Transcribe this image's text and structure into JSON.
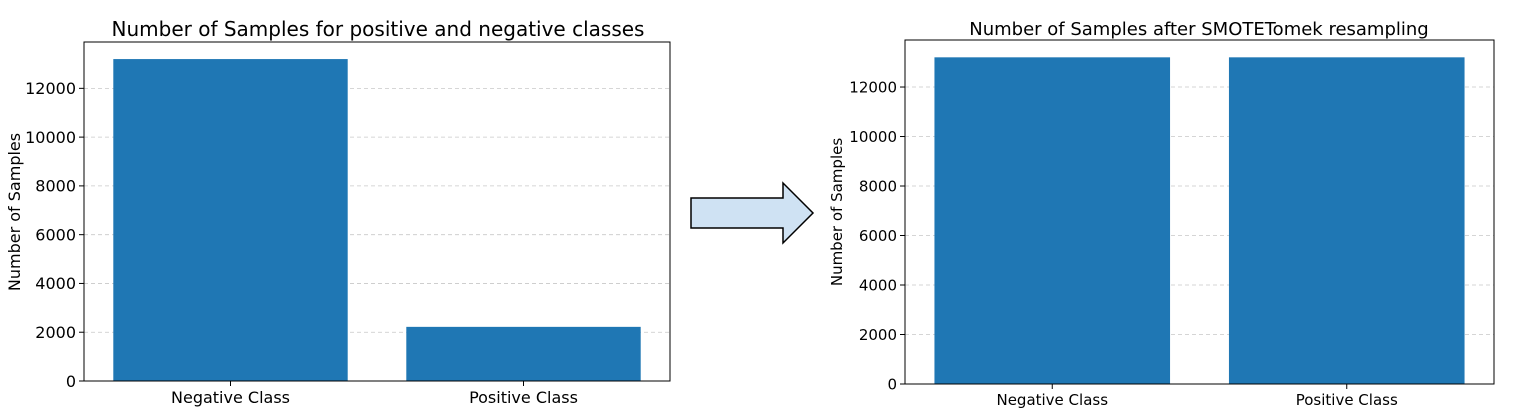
{
  "colors": {
    "bar": "#1f77b4",
    "grid": "#c8c8c8",
    "arrow_fill": "#cfe2f3",
    "arrow_stroke": "#000000"
  },
  "arrow_icon": "right-arrow-icon",
  "chart_data": [
    {
      "type": "bar",
      "title": "Number of Samples for positive and negative classes",
      "xlabel": "",
      "ylabel": "Number of Samples",
      "categories": [
        "Negative Class",
        "Positive Class"
      ],
      "values": [
        13200,
        2220
      ],
      "ylim": [
        0,
        13900
      ],
      "yticks": [
        0,
        2000,
        4000,
        6000,
        8000,
        10000,
        12000
      ],
      "grid": "y-dashed",
      "legend": "none"
    },
    {
      "type": "bar",
      "title": "Number of Samples after SMOTETomek resampling",
      "xlabel": "",
      "ylabel": "Number of Samples",
      "categories": [
        "Negative Class",
        "Positive Class"
      ],
      "values": [
        13200,
        13200
      ],
      "ylim": [
        0,
        13900
      ],
      "yticks": [
        0,
        2000,
        4000,
        6000,
        8000,
        10000,
        12000
      ],
      "grid": "y-dashed",
      "legend": "none"
    }
  ]
}
